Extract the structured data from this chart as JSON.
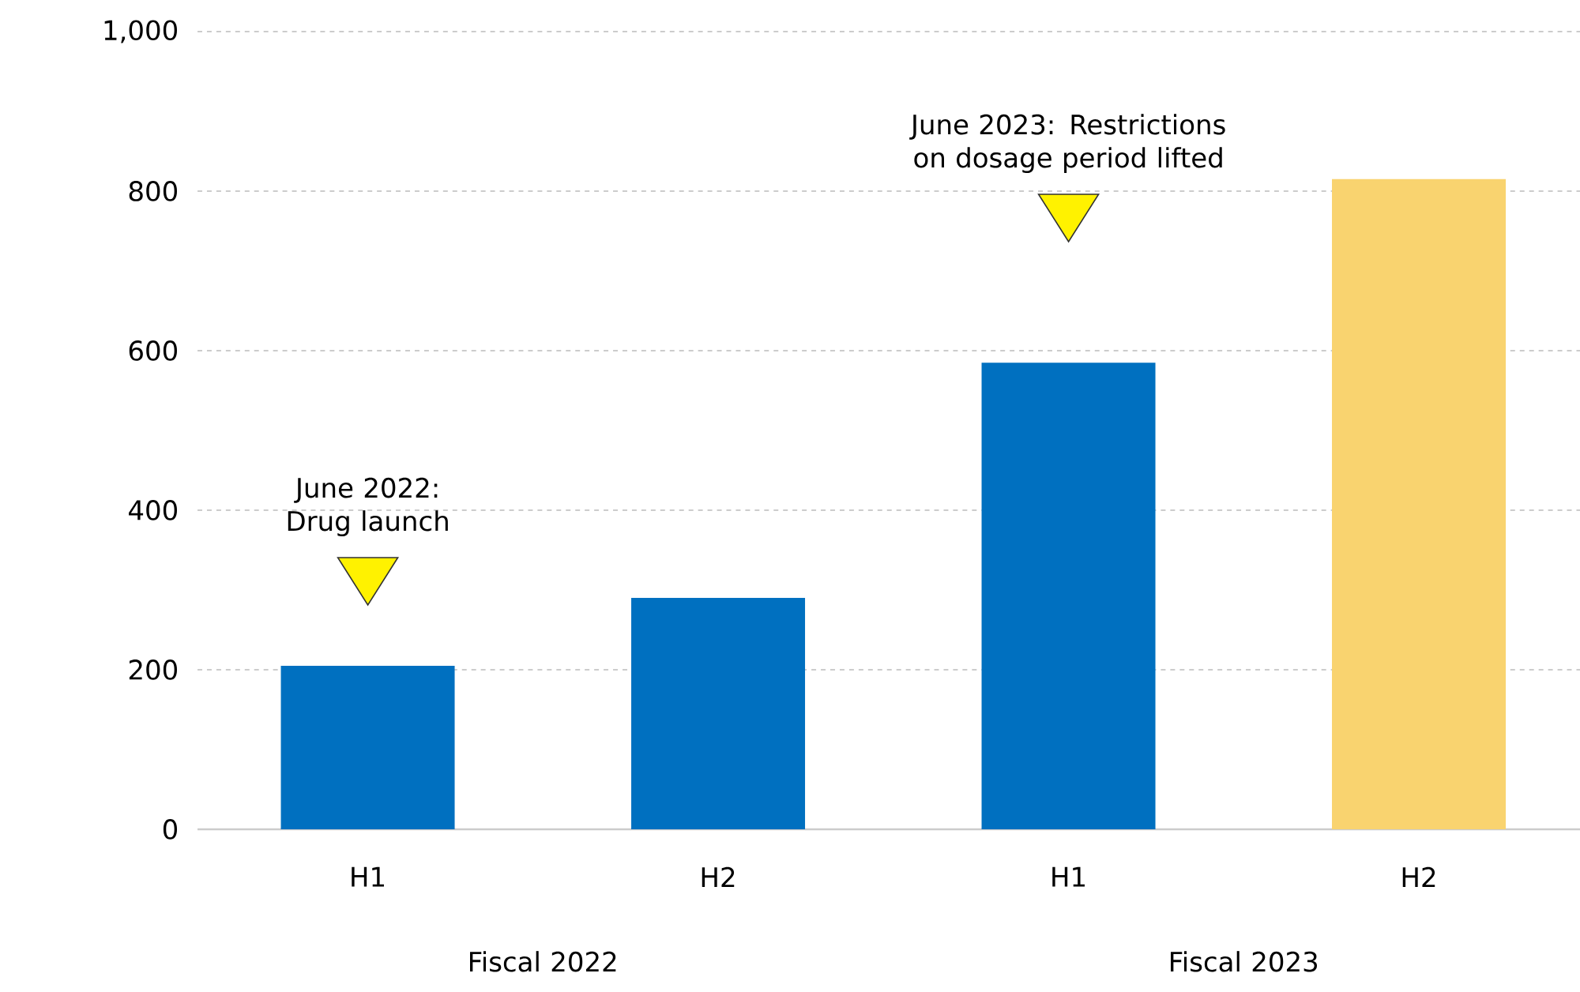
{
  "chart_data": {
    "type": "bar",
    "categories": [
      "H1",
      "H2",
      "H1",
      "H2"
    ],
    "values": [
      205,
      290,
      585,
      815
    ],
    "colors": [
      "#0070c0",
      "#0070c0",
      "#0070c0",
      "#f9d36f"
    ],
    "ylim": [
      0,
      1000
    ],
    "yticks": [
      0,
      200,
      400,
      600,
      800,
      {
        "value": 1000,
        "label": "1,000"
      }
    ],
    "grid": "y",
    "annotations": [
      "June 2022: Drug launch",
      "June 2023: Restrictions on dosage period lifted",
      "Fiscal 2022",
      "Fiscal 2023"
    ]
  }
}
